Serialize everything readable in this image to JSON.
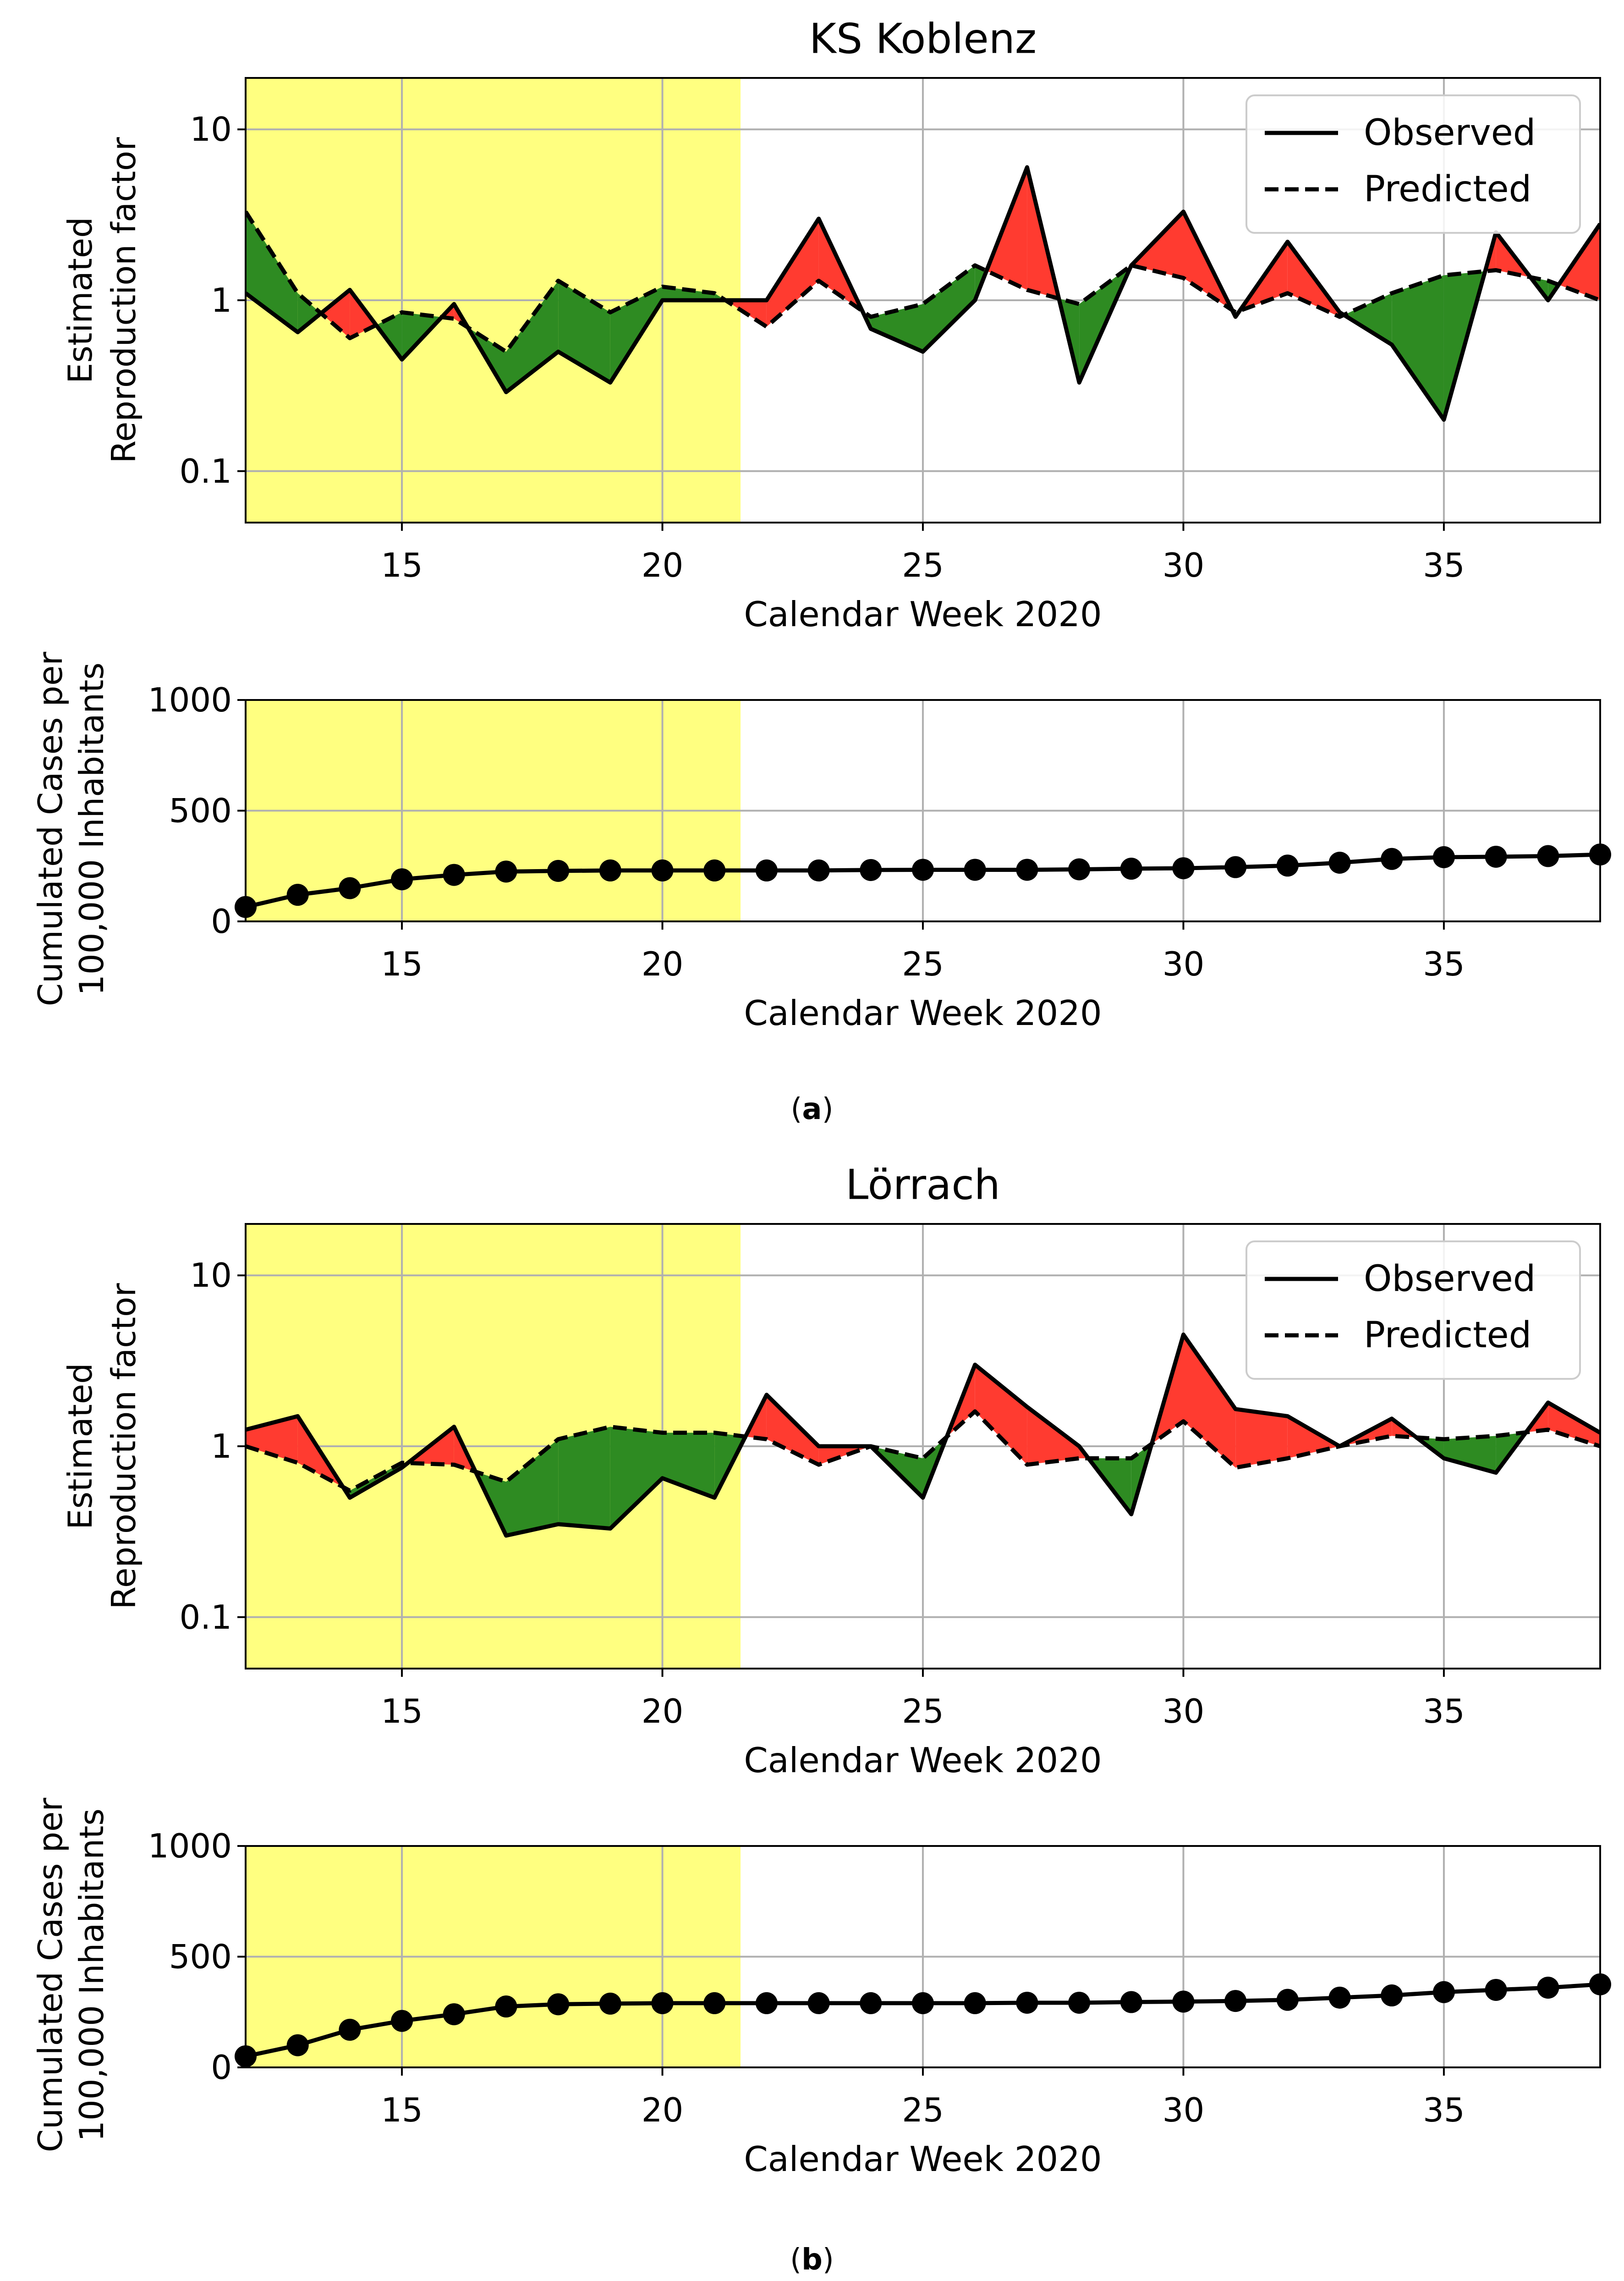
{
  "colors": {
    "highlight": "#ffff80",
    "over": "#ff3b30",
    "under": "#2e8b22",
    "line": "#000000",
    "grid": "#b0b0b0"
  },
  "shared": {
    "x_label": "Calendar Week 2020",
    "r_ylabel_line1": "Estimated",
    "r_ylabel_line2": "Reproduction factor",
    "c_ylabel_line1": "Cumulated Cases per",
    "c_ylabel_line2": "100,000 Inhabitants",
    "legend_observed": "Observed",
    "legend_predicted": "Predicted",
    "x_ticks": [
      "15",
      "20",
      "25",
      "30",
      "35"
    ],
    "r_ticks": [
      "10",
      "1",
      "0.1"
    ],
    "c_ticks": [
      "1000",
      "500",
      "0"
    ]
  },
  "chart_data": [
    {
      "panel": "a",
      "caption": "a",
      "title": "KS Koblenz",
      "type": "line",
      "yscale": "log",
      "xlabel": "Calendar Week 2020",
      "ylabel": "Estimated Reproduction factor",
      "xlim": [
        12,
        38
      ],
      "ylim": [
        0.05,
        20
      ],
      "highlight_range": [
        12,
        21.5
      ],
      "weeks": [
        12,
        13,
        14,
        15,
        16,
        17,
        18,
        19,
        20,
        21,
        22,
        23,
        24,
        25,
        26,
        27,
        28,
        29,
        30,
        31,
        32,
        33,
        34,
        35,
        36,
        37,
        38
      ],
      "series": [
        {
          "name": "Observed",
          "style": "solid",
          "values": [
            1.1,
            0.65,
            1.15,
            0.45,
            0.95,
            0.29,
            0.5,
            0.33,
            1.0,
            1.0,
            1.0,
            3.0,
            0.68,
            0.5,
            1.0,
            6.0,
            0.33,
            1.6,
            3.3,
            0.8,
            2.2,
            0.85,
            0.55,
            0.2,
            2.5,
            1.0,
            2.8
          ]
        },
        {
          "name": "Predicted",
          "style": "dashed",
          "values": [
            3.3,
            1.1,
            0.6,
            0.85,
            0.78,
            0.5,
            1.3,
            0.85,
            1.2,
            1.1,
            0.7,
            1.3,
            0.8,
            0.95,
            1.6,
            1.15,
            0.95,
            1.6,
            1.35,
            0.85,
            1.1,
            0.8,
            1.1,
            1.4,
            1.5,
            1.3,
            1.0
          ]
        }
      ]
    },
    {
      "panel": "a",
      "type": "line",
      "xlabel": "Calendar Week 2020",
      "ylabel": "Cumulated Cases per 100,000 Inhabitants",
      "xlim": [
        12,
        38
      ],
      "ylim": [
        0,
        1000
      ],
      "highlight_range": [
        12,
        21.5
      ],
      "weeks": [
        12,
        13,
        14,
        15,
        16,
        17,
        18,
        19,
        20,
        21,
        22,
        23,
        24,
        25,
        26,
        27,
        28,
        29,
        30,
        31,
        32,
        33,
        34,
        35,
        36,
        37,
        38
      ],
      "values": [
        65,
        120,
        150,
        190,
        210,
        225,
        228,
        230,
        230,
        230,
        230,
        230,
        232,
        233,
        233,
        233,
        235,
        238,
        240,
        245,
        252,
        265,
        282,
        290,
        292,
        295,
        302
      ]
    },
    {
      "panel": "b",
      "caption": "b",
      "title": "Lörrach",
      "type": "line",
      "yscale": "log",
      "xlabel": "Calendar Week 2020",
      "ylabel": "Estimated Reproduction factor",
      "xlim": [
        12,
        38
      ],
      "ylim": [
        0.05,
        20
      ],
      "highlight_range": [
        12,
        21.5
      ],
      "weeks": [
        12,
        13,
        14,
        15,
        16,
        17,
        18,
        19,
        20,
        21,
        22,
        23,
        24,
        25,
        26,
        27,
        28,
        29,
        30,
        31,
        32,
        33,
        34,
        35,
        36,
        37,
        38
      ],
      "series": [
        {
          "name": "Observed",
          "style": "solid",
          "values": [
            1.25,
            1.5,
            0.5,
            0.75,
            1.3,
            0.3,
            0.35,
            0.33,
            0.65,
            0.5,
            2.0,
            1.0,
            1.0,
            0.5,
            3.0,
            1.7,
            1.0,
            0.4,
            4.5,
            1.65,
            1.5,
            1.0,
            1.45,
            0.85,
            0.7,
            1.8,
            1.2
          ]
        },
        {
          "name": "Predicted",
          "style": "dashed",
          "values": [
            1.0,
            0.8,
            0.55,
            0.8,
            0.78,
            0.62,
            1.1,
            1.3,
            1.2,
            1.2,
            1.1,
            0.78,
            1.0,
            0.85,
            1.6,
            0.78,
            0.85,
            0.85,
            1.4,
            0.75,
            0.85,
            1.0,
            1.15,
            1.1,
            1.15,
            1.25,
            1.0
          ]
        }
      ]
    },
    {
      "panel": "b",
      "type": "line",
      "xlabel": "Calendar Week 2020",
      "ylabel": "Cumulated Cases per 100,000 Inhabitants",
      "xlim": [
        12,
        38
      ],
      "ylim": [
        0,
        1000
      ],
      "highlight_range": [
        12,
        21.5
      ],
      "weeks": [
        12,
        13,
        14,
        15,
        16,
        17,
        18,
        19,
        20,
        21,
        22,
        23,
        24,
        25,
        26,
        27,
        28,
        29,
        30,
        31,
        32,
        33,
        34,
        35,
        36,
        37,
        38
      ],
      "values": [
        50,
        100,
        170,
        210,
        240,
        275,
        285,
        288,
        290,
        290,
        290,
        290,
        290,
        290,
        290,
        292,
        292,
        295,
        297,
        300,
        305,
        315,
        325,
        340,
        350,
        360,
        375
      ]
    }
  ]
}
